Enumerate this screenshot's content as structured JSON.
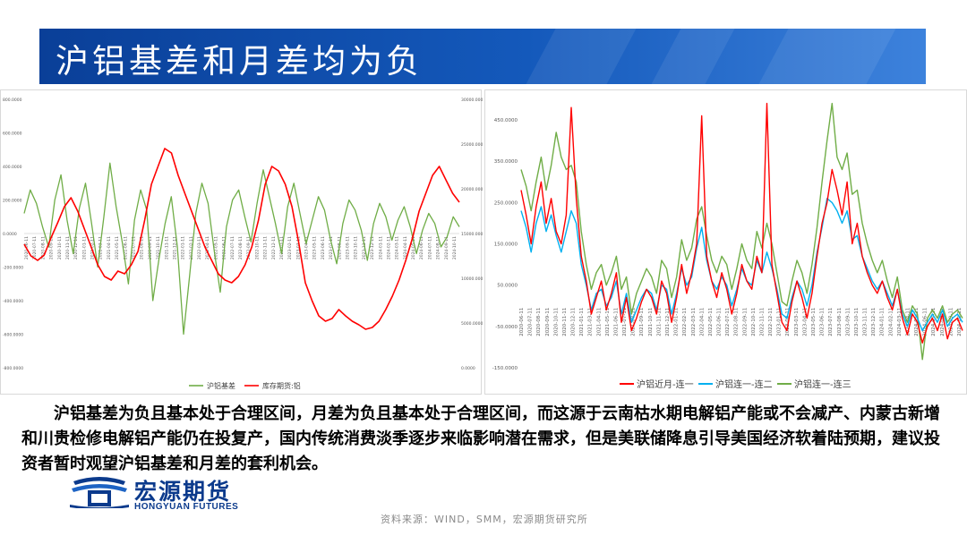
{
  "header": {
    "title": "沪铝基差和月差均为负"
  },
  "body": {
    "paragraph": "沪铝基差为负且基本处于合理区间，月差为负且基本处于合理区间，而这源于云南枯水期电解铝产能或不会减产、内蒙古新增和川贵检修电解铝产能仍在投复产，国内传统消费淡季逐步来临影响潜在需求，但是美联储降息引导美国经济软着陆预期，建议投资者暂时观望沪铝基差和月差的套利机会。"
  },
  "logo": {
    "name_cn": "宏源期货",
    "name_en": "HONGYUAN FUTURES"
  },
  "footer": {
    "source": "资料来源：WIND，SMM，宏源期货研究所"
  },
  "colors": {
    "accent": "#0a3f98",
    "green": "#70ad47",
    "red": "#ff0000",
    "blue": "#00b0f0"
  },
  "chart_data": [
    {
      "type": "line",
      "title": "",
      "y_left_ticks": [
        "800.0000",
        "600.0000",
        "400.0000",
        "200.0000",
        "0.0000",
        "-200.0000",
        "-400.0000",
        "-600.0000",
        "-800.0000"
      ],
      "y_left_lim": [
        -800,
        800
      ],
      "y_right_ticks": [
        "30000.0000",
        "25000.0000",
        "20000.0000",
        "15000.0000",
        "10000.0000",
        "5000.0000",
        "0.0000"
      ],
      "y_right_lim": [
        0,
        30000
      ],
      "x_ticks": [
        "2020-06-11",
        "2020-07-11",
        "2020-08-11",
        "2020-09-11",
        "2020-10-11",
        "2020-11-11",
        "2020-12-11",
        "2021-01-11",
        "2021-02-11",
        "2021-03-11",
        "2021-04-11",
        "2021-05-11",
        "2021-06-11",
        "2021-07-11",
        "2021-08-11",
        "2021-09-11",
        "2021-10-11",
        "2021-11-11",
        "2021-12-11",
        "2022-01-11",
        "2022-02-11",
        "2022-03-11",
        "2022-04-11",
        "2022-05-11",
        "2022-06-11",
        "2022-07-11",
        "2022-08-11",
        "2022-09-11",
        "2022-10-11",
        "2022-11-11",
        "2022-12-11",
        "2023-01-11",
        "2023-02-11",
        "2023-03-11",
        "2023-04-11",
        "2023-05-11",
        "2023-06-11",
        "2023-07-11",
        "2023-08-11",
        "2023-09-11",
        "2023-10-11",
        "2023-11-11",
        "2023-12-11",
        "2024-01-11",
        "2024-02-11",
        "2024-03-11",
        "2024-04-11",
        "2024-05-11",
        "2024-06-11",
        "2024-07-11",
        "2024-08-11",
        "2024-09-11",
        "2024-10-11"
      ],
      "legend_position": "bottom",
      "series": [
        {
          "name": "沪铝基差",
          "axis": "left",
          "values": [
            120,
            260,
            180,
            40,
            -80,
            200,
            350,
            80,
            -120,
            150,
            300,
            60,
            -200,
            100,
            420,
            160,
            -50,
            -300,
            80,
            260,
            140,
            -400,
            -150,
            60,
            220,
            -80,
            -600,
            -250,
            120,
            300,
            180,
            -100,
            -350,
            40,
            200,
            260,
            100,
            -50,
            180,
            380,
            220,
            60,
            -120,
            160,
            300,
            120,
            -60,
            80,
            220,
            140,
            -40,
            -180,
            60,
            200,
            140,
            20,
            -160,
            60,
            180,
            100,
            -40,
            80,
            160,
            40,
            -120,
            20,
            120,
            60,
            -80,
            -20,
            100,
            40
          ]
        },
        {
          "name": "库存期货:铝",
          "axis": "right",
          "values": [
            13800,
            12500,
            12000,
            12600,
            14500,
            16200,
            18000,
            19000,
            17500,
            15500,
            13500,
            11500,
            10200,
            9800,
            10800,
            10500,
            11500,
            13000,
            16500,
            20500,
            22500,
            24500,
            24000,
            21500,
            19500,
            17500,
            15500,
            13500,
            12000,
            10500,
            9800,
            9500,
            10200,
            11500,
            13500,
            16500,
            20500,
            22500,
            22000,
            20500,
            18000,
            14000,
            9500,
            7500,
            5800,
            5200,
            5500,
            6500,
            5800,
            5200,
            4800,
            4300,
            4500,
            5200,
            6500,
            8000,
            9800,
            12000,
            14500,
            17500,
            19500,
            21500,
            22500,
            21000,
            19500,
            18500
          ]
        }
      ]
    },
    {
      "type": "line",
      "title": "",
      "y_ticks": [
        "450.0000",
        "350.0000",
        "250.0000",
        "150.0000",
        "50.0000",
        "-50.0000",
        "-150.0000"
      ],
      "ylim": [
        -150,
        500
      ],
      "x_ticks": [
        "2020-06-11",
        "2020-07-11",
        "2020-08-11",
        "2020-09-11",
        "2020-10-11",
        "2020-11-11",
        "2020-12-11",
        "2021-01-11",
        "2021-03-11",
        "2021-04-11",
        "2021-05-11",
        "2021-06-11",
        "2021-07-11",
        "2021-08-11",
        "2021-09-11",
        "2021-10-11",
        "2021-11-11",
        "2021-12-11",
        "2022-01-11",
        "2022-02-11",
        "2022-03-11",
        "2022-04-11",
        "2022-05-11",
        "2022-06-11",
        "2022-07-11",
        "2022-08-11",
        "2022-09-11",
        "2022-10-11",
        "2022-11-11",
        "2022-12-11",
        "2023-01-11",
        "2023-02-11",
        "2023-03-11",
        "2023-04-11",
        "2023-05-11",
        "2023-06-11",
        "2023-07-11",
        "2023-08-11",
        "2023-09-11",
        "2023-10-11",
        "2023-11-11",
        "2023-12-11",
        "2024-01-11",
        "2024-02-11",
        "2024-03-11",
        "2024-04-11",
        "2024-05-11",
        "2024-06-11",
        "2024-07-11",
        "2024-08-11",
        "2024-09-11",
        "2024-10-11"
      ],
      "legend_position": "bottom",
      "series": [
        {
          "name": "沪铝近月-连一",
          "values": [
            280,
            220,
            150,
            240,
            300,
            200,
            260,
            180,
            150,
            220,
            480,
            260,
            120,
            60,
            -20,
            20,
            60,
            -10,
            30,
            80,
            -40,
            20,
            -60,
            -30,
            10,
            40,
            20,
            -20,
            60,
            30,
            -40,
            20,
            100,
            30,
            80,
            150,
            460,
            120,
            60,
            20,
            80,
            40,
            -20,
            30,
            100,
            60,
            40,
            120,
            80,
            490,
            100,
            30,
            -40,
            -60,
            10,
            60,
            20,
            -30,
            30,
            120,
            200,
            250,
            330,
            280,
            220,
            300,
            150,
            200,
            120,
            80,
            50,
            30,
            60,
            20,
            -10,
            40,
            -30,
            -70,
            -20,
            -40,
            -90,
            -50,
            -30,
            -60,
            -20,
            -80,
            -40,
            -30,
            -60
          ]
        },
        {
          "name": "沪铝连一-连二",
          "values": [
            230,
            190,
            130,
            200,
            240,
            180,
            220,
            170,
            130,
            180,
            230,
            200,
            100,
            50,
            -10,
            30,
            40,
            0,
            20,
            60,
            -20,
            30,
            -40,
            -10,
            20,
            40,
            30,
            -10,
            50,
            40,
            -20,
            30,
            90,
            50,
            70,
            140,
            190,
            110,
            60,
            40,
            70,
            50,
            0,
            40,
            90,
            60,
            50,
            110,
            80,
            130,
            90,
            40,
            -20,
            -30,
            20,
            60,
            40,
            0,
            50,
            130,
            190,
            260,
            250,
            230,
            200,
            230,
            160,
            170,
            120,
            90,
            60,
            40,
            60,
            30,
            0,
            40,
            -20,
            -50,
            -10,
            -30,
            -60,
            -40,
            -20,
            -40,
            -10,
            -50,
            -30,
            -20,
            -40
          ]
        },
        {
          "name": "沪铝连一-连三",
          "values": [
            330,
            290,
            230,
            300,
            360,
            280,
            340,
            420,
            360,
            330,
            340,
            300,
            180,
            100,
            40,
            80,
            100,
            50,
            80,
            120,
            40,
            70,
            -20,
            30,
            60,
            90,
            70,
            30,
            110,
            90,
            20,
            70,
            160,
            110,
            140,
            210,
            240,
            170,
            110,
            80,
            120,
            100,
            40,
            90,
            150,
            110,
            90,
            180,
            140,
            200,
            150,
            80,
            10,
            0,
            60,
            110,
            80,
            30,
            100,
            190,
            300,
            400,
            490,
            360,
            330,
            370,
            270,
            280,
            200,
            150,
            110,
            80,
            110,
            60,
            20,
            70,
            -10,
            -40,
            0,
            -20,
            -130,
            -30,
            -10,
            -30,
            0,
            -40,
            -20,
            -10,
            -30
          ]
        }
      ]
    }
  ]
}
